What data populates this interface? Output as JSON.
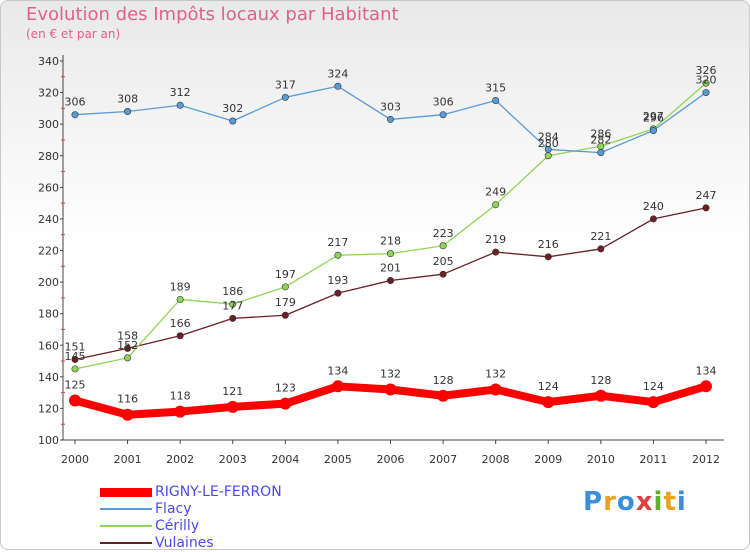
{
  "header": {
    "title": "Evolution des Impôts locaux par Habitant",
    "subtitle": "(en € et par an)"
  },
  "logo": {
    "letters": [
      {
        "ch": "P",
        "color": "#3a8fd8"
      },
      {
        "ch": "r",
        "color": "#f0a020"
      },
      {
        "ch": "o",
        "color": "#3a8fd8"
      },
      {
        "ch": "x",
        "color": "#e04040"
      },
      {
        "ch": "i",
        "color": "#60b030"
      },
      {
        "ch": "t",
        "color": "#f0a020"
      },
      {
        "ch": "i",
        "color": "#3a8fd8"
      }
    ]
  },
  "chart_data": {
    "type": "line",
    "title": "Evolution des Impôts locaux par Habitant",
    "subtitle": "(en € et par an)",
    "x": [
      "2000",
      "2001",
      "2002",
      "2003",
      "2004",
      "2005",
      "2006",
      "2007",
      "2008",
      "2009",
      "2010",
      "2011",
      "2012"
    ],
    "ylim": [
      100,
      340
    ],
    "yticks": [
      100,
      120,
      140,
      160,
      180,
      200,
      220,
      240,
      260,
      280,
      300,
      320,
      340
    ],
    "grid": false,
    "legend_position": "bottom-left",
    "series": [
      {
        "name": "RIGNY-LE-FERRON",
        "color": "#ff0000",
        "values": [
          125,
          116,
          118,
          121,
          123,
          134,
          132,
          128,
          132,
          124,
          128,
          124,
          134
        ]
      },
      {
        "name": "Flacy",
        "color": "#5b9bd5",
        "values": [
          306,
          308,
          312,
          302,
          317,
          324,
          303,
          306,
          315,
          284,
          282,
          296,
          320
        ]
      },
      {
        "name": "Cérilly",
        "color": "#8fd658",
        "values": [
          145,
          152,
          189,
          186,
          197,
          217,
          218,
          223,
          249,
          280,
          286,
          297,
          326
        ]
      },
      {
        "name": "Vulaines",
        "color": "#6b1f24",
        "values": [
          151,
          158,
          166,
          177,
          179,
          193,
          201,
          205,
          219,
          216,
          221,
          240,
          247
        ]
      }
    ]
  }
}
